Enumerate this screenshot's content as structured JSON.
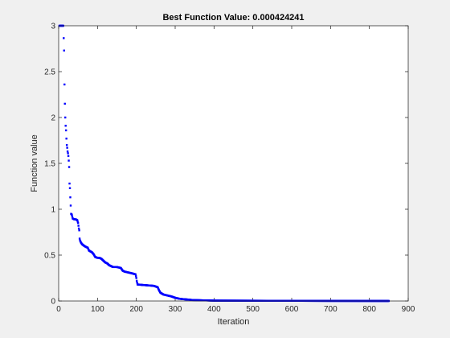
{
  "chart_data": {
    "type": "scatter",
    "title": "Best Function Value: 0.000424241",
    "xlabel": "Iteration",
    "ylabel": "Function value",
    "xlim": [
      0,
      900
    ],
    "ylim": [
      0,
      3
    ],
    "xticks": [
      "0",
      "100",
      "200",
      "300",
      "400",
      "500",
      "600",
      "700",
      "800",
      "900"
    ],
    "yticks": [
      "0",
      "0.5",
      "1",
      "1.5",
      "2",
      "2.5",
      "3"
    ],
    "grid": false,
    "marker_color": "#0000ff",
    "series": [
      {
        "points": [
          [
            2,
            3.0
          ],
          [
            4,
            3.0
          ],
          [
            6,
            3.0
          ],
          [
            8,
            3.0
          ],
          [
            10,
            3.0
          ],
          [
            12,
            3.0
          ],
          [
            14,
            2.73
          ],
          [
            15,
            2.36
          ],
          [
            16,
            2.15
          ],
          [
            17,
            2.0
          ],
          [
            18,
            1.91
          ],
          [
            19,
            1.86
          ],
          [
            20,
            1.77
          ],
          [
            21,
            1.7
          ],
          [
            22,
            1.67
          ],
          [
            23,
            1.63
          ],
          [
            24,
            1.61
          ],
          [
            25,
            1.58
          ],
          [
            26,
            1.53
          ],
          [
            27,
            1.46
          ],
          [
            28,
            1.28
          ],
          [
            29,
            1.23
          ],
          [
            30,
            1.13
          ],
          [
            32,
            0.95
          ],
          [
            34,
            0.94
          ],
          [
            36,
            0.9
          ],
          [
            40,
            0.89
          ],
          [
            44,
            0.89
          ],
          [
            48,
            0.88
          ],
          [
            50,
            0.85
          ],
          [
            52,
            0.79
          ],
          [
            53,
            0.77
          ],
          [
            54,
            0.68
          ],
          [
            55,
            0.66
          ],
          [
            57,
            0.64
          ],
          [
            60,
            0.62
          ],
          [
            63,
            0.61
          ],
          [
            66,
            0.6
          ],
          [
            70,
            0.59
          ],
          [
            75,
            0.58
          ],
          [
            78,
            0.55
          ],
          [
            82,
            0.54
          ],
          [
            86,
            0.53
          ],
          [
            90,
            0.51
          ],
          [
            94,
            0.48
          ],
          [
            100,
            0.47
          ],
          [
            105,
            0.47
          ],
          [
            110,
            0.46
          ],
          [
            115,
            0.44
          ],
          [
            120,
            0.42
          ],
          [
            125,
            0.41
          ],
          [
            130,
            0.39
          ],
          [
            135,
            0.38
          ],
          [
            140,
            0.37
          ],
          [
            150,
            0.37
          ],
          [
            160,
            0.36
          ],
          [
            165,
            0.33
          ],
          [
            170,
            0.32
          ],
          [
            180,
            0.31
          ],
          [
            190,
            0.3
          ],
          [
            198,
            0.29
          ],
          [
            200,
            0.25
          ],
          [
            201,
            0.22
          ],
          [
            203,
            0.18
          ],
          [
            215,
            0.175
          ],
          [
            230,
            0.17
          ],
          [
            245,
            0.165
          ],
          [
            255,
            0.15
          ],
          [
            258,
            0.12
          ],
          [
            262,
            0.09
          ],
          [
            270,
            0.07
          ],
          [
            280,
            0.06
          ],
          [
            290,
            0.05
          ],
          [
            300,
            0.035
          ],
          [
            310,
            0.025
          ],
          [
            320,
            0.02
          ],
          [
            335,
            0.015
          ],
          [
            345,
            0.01
          ],
          [
            400,
            0.004
          ],
          [
            500,
            0.003
          ],
          [
            600,
            0.002
          ],
          [
            700,
            0.001
          ],
          [
            800,
            0.0006
          ],
          [
            850,
            0.0004
          ]
        ]
      }
    ]
  }
}
